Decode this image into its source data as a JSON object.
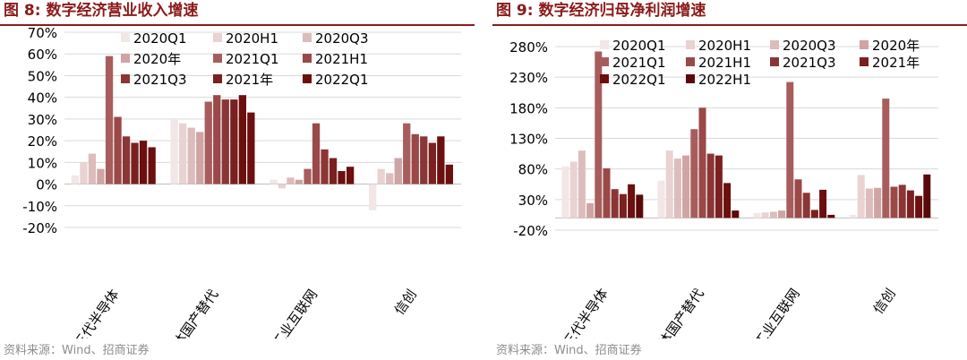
{
  "charts": [
    {
      "fig_title": "图 8:  数字经济营业收入增速",
      "source": "资料来源：Wind、招商证券"
    },
    {
      "fig_title": "图 9:  数字经济归母净利润增速",
      "source": "资料来源：Wind、招商证券"
    }
  ],
  "chart_data": [
    {
      "type": "bar",
      "title": "数字经济营业收入增速",
      "categories": [
        "第三代半导体",
        "半导体国产替代",
        "工业互联网",
        "信创"
      ],
      "y_unit": "%",
      "ylim": [
        -20,
        70
      ],
      "yticks": [
        -20,
        -10,
        0,
        10,
        20,
        30,
        40,
        50,
        60,
        70
      ],
      "grid": true,
      "legend_position": "top",
      "series": [
        {
          "name": "2020Q1",
          "color": "#f2e6e6",
          "values": [
            4,
            30,
            2,
            -12
          ]
        },
        {
          "name": "2020H1",
          "color": "#e8d2d2",
          "values": [
            10,
            28,
            -2,
            7
          ]
        },
        {
          "name": "2020Q3",
          "color": "#dcbcbc",
          "values": [
            14,
            26,
            3,
            5
          ]
        },
        {
          "name": "2020年",
          "color": "#cfa4a4",
          "values": [
            7,
            24,
            2,
            12
          ]
        },
        {
          "name": "2021Q1",
          "color": "#a85d5d",
          "values": [
            59,
            38,
            7,
            28
          ]
        },
        {
          "name": "2021H1",
          "color": "#9a4848",
          "values": [
            31,
            41,
            28,
            23
          ]
        },
        {
          "name": "2021Q3",
          "color": "#8b3636",
          "values": [
            22,
            39,
            16,
            22
          ]
        },
        {
          "name": "2021年",
          "color": "#7a2020",
          "values": [
            19,
            39,
            12,
            19
          ]
        },
        {
          "name": "2022Q1",
          "color": "#6b0f0f",
          "values": [
            20,
            41,
            6,
            22
          ]
        },
        {
          "name": "2022Q1",
          "color": "#6b0f0f",
          "values": [
            17,
            33,
            8,
            9
          ]
        }
      ],
      "series_note_index_extra": [
        null,
        null,
        13,
        null
      ]
    },
    {
      "type": "bar",
      "title": "数字经济归母净利润增速",
      "categories": [
        "第三代半导体",
        "半导体国产替代",
        "工业互联网",
        "信创"
      ],
      "y_unit": "%",
      "ylim": [
        -20,
        280
      ],
      "yticks": [
        -20,
        30,
        80,
        130,
        180,
        230,
        280
      ],
      "grid": true,
      "legend_position": "top",
      "series": [
        {
          "name": "2020Q1",
          "color": "#f2e6e6",
          "values": [
            84,
            61,
            8,
            5
          ]
        },
        {
          "name": "2020H1",
          "color": "#e8d2d2",
          "values": [
            92,
            110,
            9,
            70
          ]
        },
        {
          "name": "2020Q3",
          "color": "#dcbcbc",
          "values": [
            110,
            97,
            10,
            48
          ]
        },
        {
          "name": "2020年",
          "color": "#cfa4a4",
          "values": [
            24,
            102,
            12,
            49
          ]
        },
        {
          "name": "2021Q1",
          "color": "#a85d5d",
          "values": [
            272,
            145,
            222,
            195
          ]
        },
        {
          "name": "2021H1",
          "color": "#9a4848",
          "values": [
            81,
            180,
            63,
            51
          ]
        },
        {
          "name": "2021Q3",
          "color": "#8b3636",
          "values": [
            47,
            105,
            41,
            54
          ]
        },
        {
          "name": "2021年",
          "color": "#7a2020",
          "values": [
            39,
            102,
            13,
            45
          ]
        },
        {
          "name": "2022Q1",
          "color": "#6b0f0f",
          "values": [
            55,
            57,
            46,
            36
          ]
        },
        {
          "name": "2022H1",
          "color": "#5a0a0a",
          "values": [
            38,
            12,
            5,
            71
          ]
        }
      ]
    }
  ]
}
